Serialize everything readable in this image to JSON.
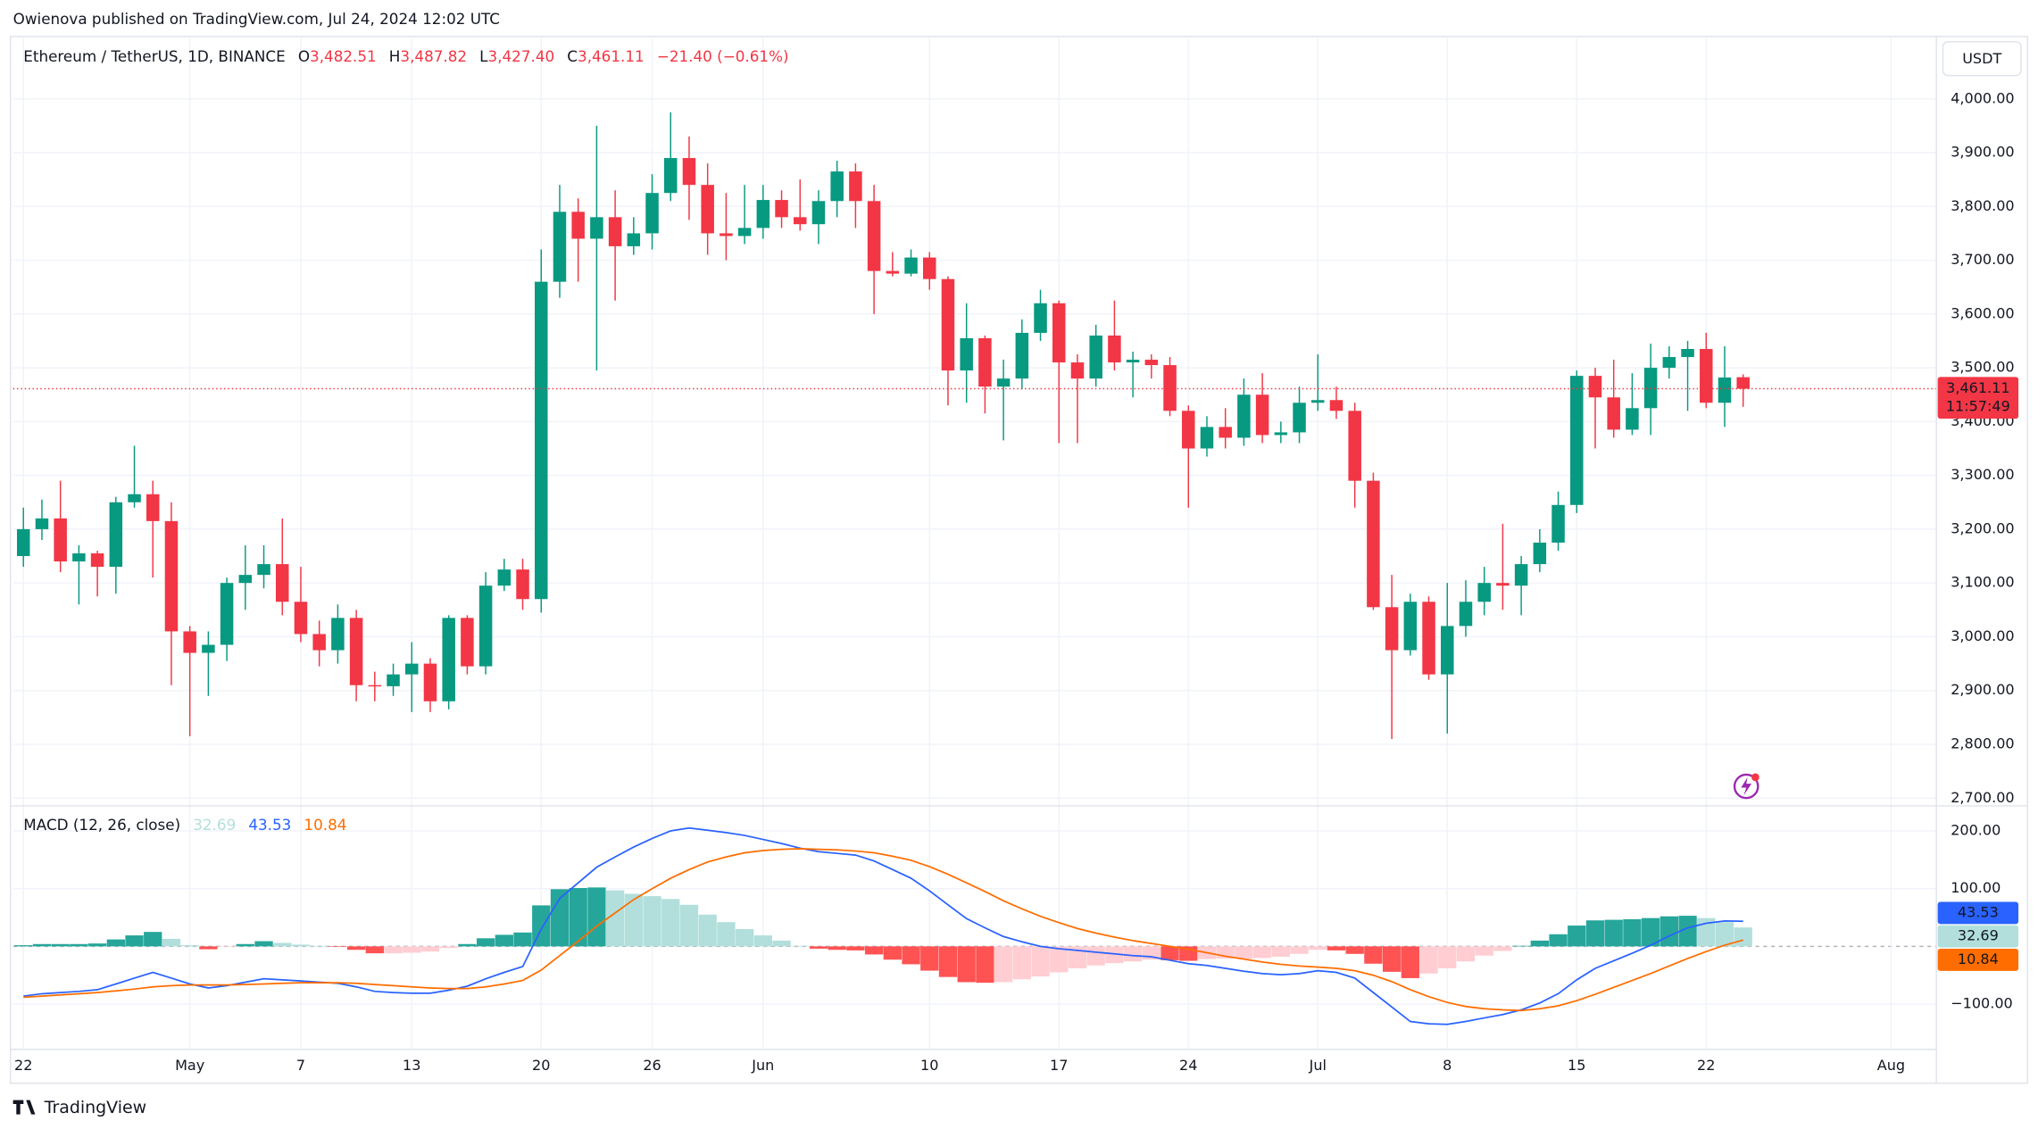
{
  "published": "Owienova published on TradingView.com, Jul 24, 2024 12:02 UTC",
  "currency": "USDT",
  "brand": "TradingView",
  "chart_data": [
    {
      "type": "candlestick",
      "title": "Ethereum / TetherUS, 1D, BINANCE",
      "legend_items": [
        {
          "prefix": "O",
          "text": "3,482.51"
        },
        {
          "prefix": "H",
          "text": "3,487.82"
        },
        {
          "prefix": "L",
          "text": "3,427.40"
        },
        {
          "prefix": "C",
          "text": "3,461.11"
        }
      ],
      "change": "−21.40 (−0.61%)",
      "open": [
        3150,
        3200,
        3220,
        3140,
        3155,
        3130,
        3250,
        3265,
        3215,
        3010,
        2970,
        2985,
        3100,
        3115,
        3135,
        3065,
        3005,
        2975,
        3035,
        2910,
        2908,
        2930,
        2950,
        2880,
        3035,
        2945,
        3095,
        3125,
        3070,
        3660,
        3790,
        3740,
        3780,
        3726,
        3750,
        3825,
        3890,
        3840,
        3750,
        3745,
        3760,
        3812,
        3780,
        3767,
        3810,
        3865,
        3810,
        3680,
        3675,
        3705,
        3665,
        3495,
        3555,
        3465,
        3480,
        3565,
        3620,
        3510,
        3480,
        3560,
        3510,
        3515,
        3505,
        3420,
        3350,
        3390,
        3370,
        3450,
        3375,
        3380,
        3435,
        3440,
        3420,
        3290,
        3055,
        2975,
        3065,
        2930,
        3020,
        3065,
        3100,
        3095,
        3135,
        3175,
        3245,
        3485,
        3445,
        3385,
        3425,
        3500,
        3520,
        3535,
        3435,
        3482.51
      ],
      "high": [
        3240,
        3255,
        3290,
        3170,
        3160,
        3260,
        3355,
        3290,
        3250,
        3020,
        3010,
        3110,
        3170,
        3170,
        3220,
        3130,
        3030,
        3060,
        3050,
        2935,
        2950,
        2990,
        2960,
        3040,
        3040,
        3120,
        3145,
        3145,
        3720,
        3840,
        3815,
        3950,
        3830,
        3780,
        3860,
        3975,
        3930,
        3880,
        3825,
        3840,
        3840,
        3830,
        3850,
        3830,
        3885,
        3880,
        3840,
        3715,
        3720,
        3715,
        3670,
        3620,
        3560,
        3515,
        3590,
        3645,
        3625,
        3525,
        3580,
        3625,
        3530,
        3525,
        3520,
        3430,
        3410,
        3425,
        3480,
        3490,
        3400,
        3465,
        3525,
        3465,
        3435,
        3305,
        3115,
        3080,
        3075,
        3100,
        3105,
        3130,
        3210,
        3150,
        3200,
        3270,
        3495,
        3500,
        3515,
        3490,
        3545,
        3540,
        3550,
        3565,
        3540,
        3487.82
      ],
      "low": [
        3130,
        3180,
        3120,
        3060,
        3075,
        3080,
        3240,
        3110,
        2910,
        2815,
        2890,
        2955,
        3050,
        3090,
        3040,
        2990,
        2945,
        2950,
        2880,
        2880,
        2890,
        2860,
        2860,
        2865,
        2930,
        2930,
        3085,
        3050,
        3045,
        3630,
        3660,
        3495,
        3625,
        3710,
        3720,
        3810,
        3775,
        3710,
        3700,
        3730,
        3740,
        3760,
        3755,
        3730,
        3780,
        3760,
        3600,
        3670,
        3670,
        3645,
        3430,
        3435,
        3415,
        3365,
        3460,
        3550,
        3360,
        3360,
        3465,
        3495,
        3445,
        3480,
        3410,
        3240,
        3335,
        3350,
        3355,
        3360,
        3360,
        3360,
        3420,
        3405,
        3240,
        3050,
        2810,
        2965,
        2920,
        2820,
        3000,
        3040,
        3050,
        3040,
        3120,
        3160,
        3230,
        3350,
        3370,
        3375,
        3375,
        3480,
        3420,
        3425,
        3390,
        3427.4
      ],
      "close": [
        3200,
        3220,
        3140,
        3155,
        3130,
        3250,
        3265,
        3215,
        3010,
        2970,
        2985,
        3100,
        3115,
        3135,
        3065,
        3005,
        2975,
        3035,
        2910,
        2908,
        2930,
        2950,
        2880,
        3035,
        2945,
        3095,
        3125,
        3070,
        3660,
        3790,
        3740,
        3780,
        3726,
        3750,
        3825,
        3890,
        3840,
        3750,
        3745,
        3760,
        3812,
        3780,
        3767,
        3810,
        3865,
        3810,
        3680,
        3675,
        3705,
        3665,
        3495,
        3555,
        3465,
        3480,
        3565,
        3620,
        3510,
        3480,
        3560,
        3510,
        3515,
        3505,
        3420,
        3350,
        3390,
        3370,
        3450,
        3375,
        3380,
        3435,
        3440,
        3420,
        3290,
        3055,
        2975,
        3065,
        2930,
        3020,
        3065,
        3100,
        3095,
        3135,
        3175,
        3245,
        3485,
        3445,
        3385,
        3425,
        3500,
        3520,
        3535,
        3435,
        3482,
        3461.11
      ],
      "up_color": "#089981",
      "down_color": "#f23645",
      "xlim": [
        -0.56,
        103.45
      ],
      "ylim": [
        2688,
        4116
      ],
      "yticks": [
        {
          "value": 2700,
          "label": "2,700.00"
        },
        {
          "value": 2800,
          "label": "2,800.00"
        },
        {
          "value": 2900,
          "label": "2,900.00"
        },
        {
          "value": 3000,
          "label": "3,000.00"
        },
        {
          "value": 3100,
          "label": "3,100.00"
        },
        {
          "value": 3200,
          "label": "3,200.00"
        },
        {
          "value": 3300,
          "label": "3,300.00"
        },
        {
          "value": 3400,
          "label": "3,400.00"
        },
        {
          "value": 3500,
          "label": "3,500.00"
        },
        {
          "value": 3600,
          "label": "3,600.00"
        },
        {
          "value": 3700,
          "label": "3,700.00"
        },
        {
          "value": 3800,
          "label": "3,800.00"
        },
        {
          "value": 3900,
          "label": "3,900.00"
        },
        {
          "value": 4000,
          "label": "4,000.00"
        }
      ],
      "grid": true,
      "last_price_label": "3,461.11",
      "countdown": "11:57:49"
    },
    {
      "type": "macd",
      "title": "MACD (12, 26, close)",
      "histogram": {
        "values": [
          2,
          4,
          4,
          4,
          5,
          12,
          19,
          25,
          13,
          2,
          -5,
          -1,
          4,
          9,
          6,
          3,
          1,
          -1,
          -6,
          -12,
          -12,
          -11,
          -9,
          -3,
          4,
          14,
          20,
          24,
          71,
          99,
          101,
          102,
          97,
          91,
          87,
          82,
          72,
          55,
          42,
          30,
          19,
          10,
          1,
          -4,
          -6,
          -7,
          -14,
          -23,
          -31,
          -42,
          -53,
          -62,
          -63,
          -62,
          -57,
          -52,
          -45,
          -38,
          -33,
          -29,
          -26,
          -23,
          -24,
          -25,
          -22,
          -21,
          -21,
          -20,
          -18,
          -13,
          -6,
          -7,
          -13,
          -30,
          -44,
          -55,
          -47,
          -38,
          -26,
          -16,
          -8,
          1,
          10,
          21,
          36,
          45,
          46,
          47,
          49,
          52,
          53,
          49,
          42,
          32.69
        ],
        "colors": [
          "#26a69a",
          "#b2dfdb",
          "#ff5252",
          "#ffcdd2"
        ]
      },
      "series": [
        {
          "color": "#2962ff",
          "values": [
            -86,
            -82,
            -80,
            -78,
            -75,
            -65,
            -55,
            -45,
            -55,
            -65,
            -72,
            -68,
            -62,
            -56,
            -58,
            -60,
            -62,
            -64,
            -70,
            -78,
            -80,
            -81,
            -81,
            -76,
            -69,
            -56,
            -45,
            -35,
            30,
            83,
            110,
            137,
            155,
            172,
            187,
            200,
            205,
            201,
            197,
            192,
            185,
            178,
            170,
            164,
            161,
            158,
            148,
            133,
            118,
            96,
            72,
            48,
            32,
            17,
            8,
            0,
            -4,
            -7,
            -10,
            -13,
            -16,
            -18,
            -24,
            -30,
            -33,
            -38,
            -43,
            -47,
            -49,
            -47,
            -42,
            -45,
            -55,
            -80,
            -105,
            -130,
            -134,
            -135,
            -130,
            -124,
            -118,
            -110,
            -98,
            -82,
            -58,
            -38,
            -25,
            -12,
            2,
            18,
            32,
            40,
            44,
            43.53
          ]
        },
        {
          "color": "#ff6d00",
          "values": [
            -88,
            -86,
            -84,
            -82,
            -80,
            -77,
            -74,
            -70,
            -68,
            -67,
            -67,
            -67,
            -66,
            -65,
            -64,
            -63,
            -63,
            -63,
            -64,
            -66,
            -68,
            -70,
            -72,
            -73,
            -73,
            -70,
            -65,
            -59,
            -41,
            -16,
            9,
            35,
            58,
            81,
            100,
            118,
            133,
            146,
            155,
            162,
            166,
            168,
            169,
            168,
            167,
            165,
            162,
            156,
            149,
            138,
            125,
            110,
            95,
            79,
            65,
            52,
            41,
            31,
            23,
            16,
            10,
            5,
            0,
            -5,
            -11,
            -17,
            -22,
            -27,
            -31,
            -34,
            -36,
            -38,
            -42,
            -50,
            -61,
            -75,
            -87,
            -97,
            -104,
            -108,
            -110,
            -111,
            -108,
            -103,
            -94,
            -83,
            -71,
            -59,
            -47,
            -34,
            -21,
            -9,
            2,
            10.84
          ]
        }
      ],
      "xlim": [
        -0.56,
        103.45
      ],
      "ylim": [
        -176,
        241
      ],
      "yticks": [
        {
          "value": -100,
          "label": "−100.00"
        },
        {
          "value": 100,
          "label": "100.00"
        },
        {
          "value": 200,
          "label": "200.00"
        }
      ],
      "xticks": [
        {
          "value": 0,
          "label": "22"
        },
        {
          "value": 9,
          "label": "May"
        },
        {
          "value": 15,
          "label": "7"
        },
        {
          "value": 21,
          "label": "13"
        },
        {
          "value": 28,
          "label": "20"
        },
        {
          "value": 34,
          "label": "26"
        },
        {
          "value": 40,
          "label": "Jun"
        },
        {
          "value": 49,
          "label": "10"
        },
        {
          "value": 56,
          "label": "17"
        },
        {
          "value": 63,
          "label": "24"
        },
        {
          "value": 70,
          "label": "Jul"
        },
        {
          "value": 77,
          "label": "8"
        },
        {
          "value": 84,
          "label": "15"
        },
        {
          "value": 91,
          "label": "22"
        },
        {
          "value": 101,
          "label": "Aug"
        }
      ],
      "grid": true
    }
  ]
}
